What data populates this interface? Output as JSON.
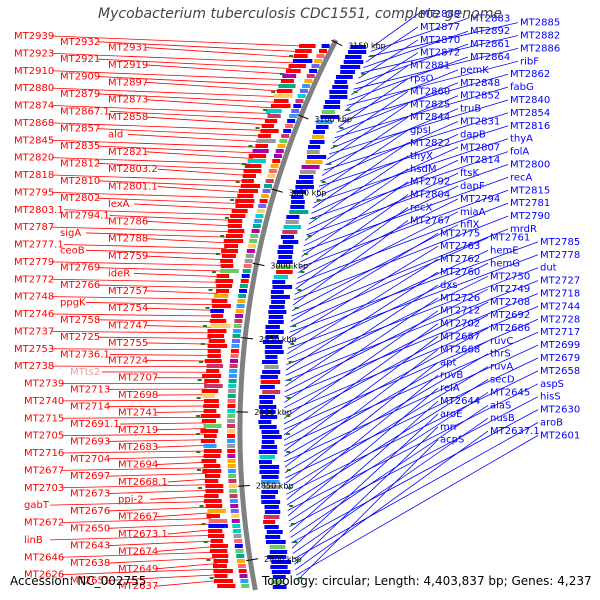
{
  "title": "Mycobacterium tuberculosis CDC1551, complete genome",
  "footer": {
    "accession": "Accession: NC_002755",
    "topology": "Topology: circular; Length: 4,403,837 bp; Genes: 4,237"
  },
  "colors": {
    "left_strand": "#ff0000",
    "right_strand": "#0000ff",
    "backbone": "#808080",
    "tick_mark": "#1a7f1a",
    "faded_label": "#e8a0a0"
  },
  "ticks": [
    {
      "label": "3150 kbp"
    },
    {
      "label": "3100 kbp"
    },
    {
      "label": "3050 kbp"
    },
    {
      "label": "3000 kbp"
    },
    {
      "label": "2950 kbp"
    },
    {
      "label": "2900 kbp"
    },
    {
      "label": "2850 kbp"
    },
    {
      "label": "2800 kbp"
    }
  ],
  "left_labels": [
    "MT2939",
    "MT2932",
    "MT2931",
    "MT2923",
    "MT2921",
    "MT2919",
    "MT2910",
    "MT2909",
    "MT2897",
    "MT2880",
    "MT2879",
    "MT2873",
    "MT2874",
    "MT2867.1",
    "MT2858",
    "MT2868",
    "MT2857",
    "ald",
    "MT2845",
    "MT2835",
    "MT2821",
    "MT2820",
    "MT2812",
    "MT2803.2",
    "MT2818",
    "MT2810",
    "MT2801.1",
    "MT2795",
    "MT2802",
    "lexA",
    "MT2803.1",
    "MT2794.1",
    "MT2786",
    "MT2787",
    "sigA",
    "MT2788",
    "MT2777.1",
    "ceoB",
    "MT2759",
    "MT2779",
    "MT2769",
    "ideR",
    "MT2772",
    "MT2766",
    "MT2757",
    "MT2748",
    "ppgK",
    "MT2754",
    "MT2746",
    "MT2758",
    "MT2747",
    "MT2737",
    "MT2725",
    "MT2755",
    "MT2753",
    "MT2736.1",
    "MT2724",
    "MT2738",
    "MTts2",
    "MT2707",
    "MT2739",
    "MT2713",
    "MT2698",
    "MT2740",
    "MT2714",
    "MT2741",
    "MT2715",
    "MT2691.1",
    "MT2719",
    "MT2705",
    "MT2693",
    "MT2683",
    "MT2716",
    "MT2704",
    "MT2694",
    "MT2677",
    "MT2697",
    "MT2668.1",
    "MT2703",
    "MT2673",
    "ppi-2",
    "gabT",
    "MT2676",
    "MT2667",
    "MT2672",
    "MT2650",
    "MT2673.1",
    "linB",
    "MT2643",
    "MT2674",
    "MT2646",
    "MT2638",
    "MT2649",
    "MT2626",
    "MT2651",
    "MT2637"
  ],
  "right_labels": [
    "MT2889",
    "MT2883",
    "MT2885",
    "MT2877",
    "MT2892",
    "MT2882",
    "MT2870",
    "MT2861",
    "MT2886",
    "MT2872",
    "MT2864",
    "ribF",
    "MT2881",
    "pemK",
    "MT2862",
    "rpsO",
    "MT2848",
    "fabG",
    "MT2860",
    "MT2852",
    "MT2840",
    "MT2825",
    "truB",
    "MT2854",
    "MT2844",
    "MT2831",
    "MT2816",
    "gpsI",
    "dapB",
    "thyA",
    "MT2822",
    "MT2807",
    "folA",
    "thyX",
    "MT2814",
    "MT2800",
    "hsdM",
    "ftsK",
    "recA",
    "MT2792",
    "dapF",
    "MT2815",
    "MT2804",
    "MT2794",
    "MT2781",
    "recX",
    "miaA",
    "MT2790",
    "MT2767",
    "hflX",
    "mrdR",
    "MT2775",
    "MT2761",
    "MT2785",
    "MT2763",
    "hemE",
    "MT2778",
    "MT2762",
    "hemG",
    "dut",
    "MT2760",
    "MT2750",
    "MT2727",
    "dxs",
    "MT2749",
    "MT2718",
    "MT2726",
    "MT2708",
    "MT2744",
    "MT2712",
    "MT2692",
    "MT2728",
    "MT2702",
    "MT2686",
    "MT2717",
    "MT2687",
    "ruvC",
    "MT2699",
    "MT2668",
    "thrS",
    "MT2679",
    "apt",
    "ruvA",
    "MT2658",
    "ruvB",
    "secD",
    "aspS",
    "relA",
    "MT2645",
    "hisS",
    "MT2644",
    "alaS",
    "MT2630",
    "aroE",
    "nusB",
    "aroB",
    "mrr",
    "MT2637.1",
    "MT2601",
    "acpS"
  ]
}
